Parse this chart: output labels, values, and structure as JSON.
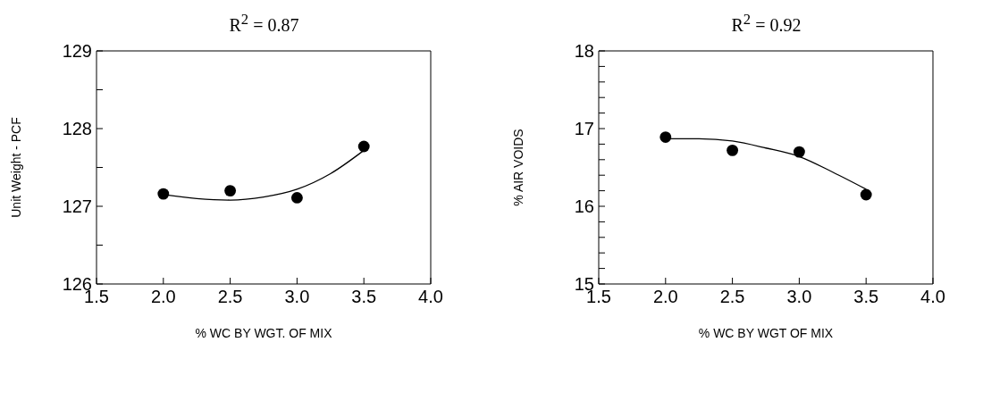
{
  "chart_data": [
    {
      "type": "scatter",
      "title": "R$^{2}$ = 0.87",
      "xlabel": "% WC BY WGT. OF MIX",
      "ylabel": "Unit Weight - PCF",
      "xlim": [
        1.5,
        4.0
      ],
      "ylim": [
        126,
        129
      ],
      "xticks": [
        {
          "value": 1.5,
          "label": "1.5"
        },
        {
          "value": 2,
          "label": "2.0"
        },
        {
          "value": 2.5,
          "label": "2.5"
        },
        {
          "value": 3,
          "label": "3.0"
        },
        {
          "value": 3.5,
          "label": "3.5"
        },
        {
          "value": 4,
          "label": "4.0"
        }
      ],
      "yticks": [
        126,
        {
          "value": 126.5,
          "label": null
        },
        127,
        {
          "value": 127.5,
          "label": null
        },
        128,
        {
          "value": 128.5,
          "label": null
        },
        129
      ],
      "series": [
        {
          "color": "#000000",
          "marker": "circle",
          "x": [
            2.0,
            2.5,
            3.0,
            3.5
          ],
          "values": [
            127.16,
            127.2,
            127.11,
            127.77
          ]
        },
        {
          "type": "line",
          "color": "#000000",
          "marker": "none",
          "x": [
            2.0,
            2.25,
            2.5,
            2.75,
            3.0,
            3.25,
            3.5
          ],
          "values": [
            127.15,
            127.1,
            127.08,
            127.12,
            127.22,
            127.42,
            127.72
          ]
        }
      ]
    },
    {
      "type": "scatter",
      "title": "R$^{2}$ = 0.92",
      "xlabel": "% WC BY WGT OF MIX",
      "ylabel": "% AIR VOIDS",
      "xlim": [
        1.5,
        4.0
      ],
      "ylim": [
        15,
        18
      ],
      "xticks": [
        {
          "value": 1.5,
          "label": "1.5"
        },
        {
          "value": 2,
          "label": "2.0"
        },
        {
          "value": 2.5,
          "label": "2.5"
        },
        {
          "value": 3,
          "label": "3.0"
        },
        {
          "value": 3.5,
          "label": "3.5"
        },
        {
          "value": 4,
          "label": "4.0"
        }
      ],
      "yticks": [
        15,
        {
          "value": 15.2,
          "label": null
        },
        {
          "value": 15.4,
          "label": null
        },
        {
          "value": 15.6,
          "label": null
        },
        {
          "value": 15.8,
          "label": null
        },
        16,
        {
          "value": 16.2,
          "label": null
        },
        {
          "value": 16.4,
          "label": null
        },
        {
          "value": 16.6,
          "label": null
        },
        {
          "value": 16.8,
          "label": null
        },
        17,
        {
          "value": 17.2,
          "label": null
        },
        {
          "value": 17.4,
          "label": null
        },
        {
          "value": 17.6,
          "label": null
        },
        {
          "value": 17.8,
          "label": null
        },
        18
      ],
      "series": [
        {
          "color": "#000000",
          "marker": "circle",
          "x": [
            2.0,
            2.5,
            3.0,
            3.5
          ],
          "values": [
            16.89,
            16.72,
            16.7,
            16.15
          ]
        },
        {
          "type": "line",
          "color": "#000000",
          "marker": "none",
          "x": [
            2.0,
            2.25,
            2.5,
            2.75,
            3.0,
            3.25,
            3.5
          ],
          "values": [
            16.87,
            16.87,
            16.84,
            16.75,
            16.64,
            16.44,
            16.22
          ]
        }
      ]
    }
  ]
}
